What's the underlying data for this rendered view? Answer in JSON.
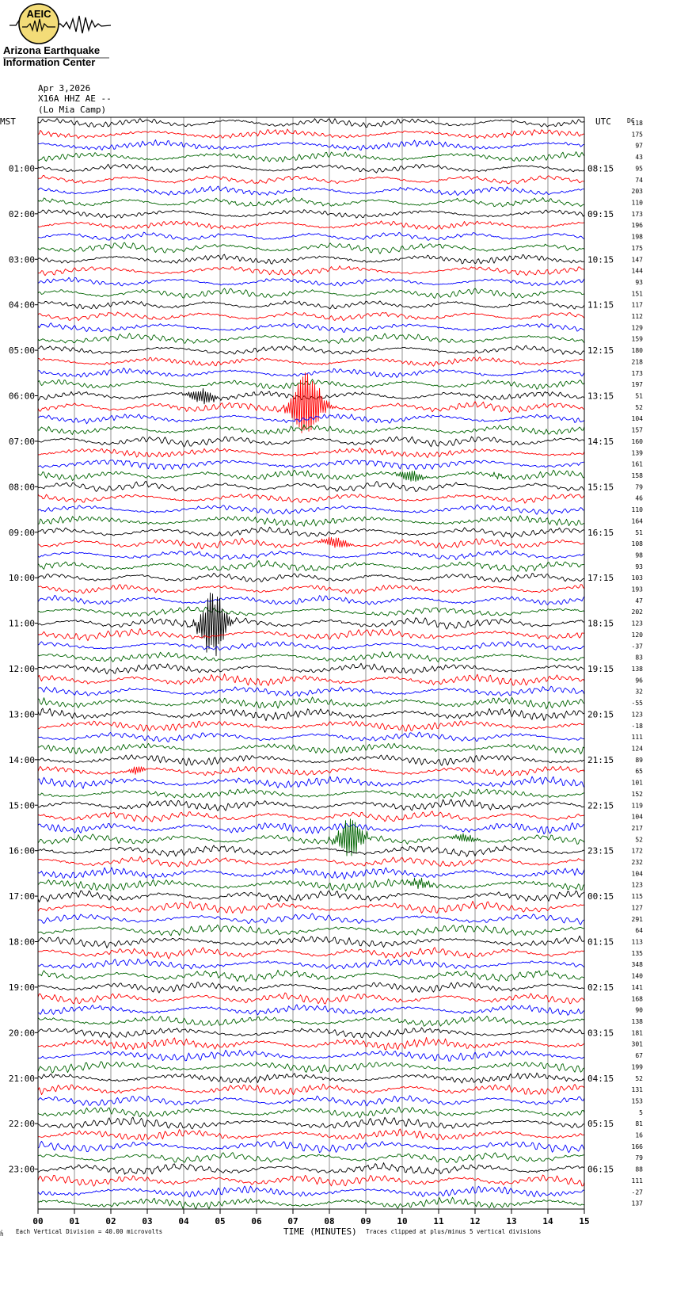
{
  "logo": {
    "abbr": "AEIC",
    "line1": "Arizona Earthquake",
    "line2": "Information Center"
  },
  "header": {
    "date": "Apr 3,2026",
    "station": "X16A HHZ AE --",
    "site": "(Lo Mia Camp)"
  },
  "axis": {
    "left_tz": "MST",
    "right_tz": "UTC",
    "dc_label": "DC",
    "xlabel": "TIME (MINUTES)"
  },
  "footer": {
    "mark": "ĥ",
    "scale": "Each Vertical Division =   40.00 microvolts",
    "clip": "Traces clipped at plus/minus 5 vertical divisions"
  },
  "colors": {
    "trace_cycle": [
      "#000000",
      "#ff0000",
      "#0000ff",
      "#006400"
    ],
    "gridline": "#777777",
    "logo_fill": "#f3dc78"
  },
  "chart_data": {
    "type": "line",
    "title": "",
    "x_range": [
      0,
      15
    ],
    "x_ticks": [
      "00",
      "01",
      "02",
      "03",
      "04",
      "05",
      "06",
      "07",
      "08",
      "09",
      "10",
      "11",
      "12",
      "13",
      "14",
      "15"
    ],
    "traces_per_hour": 4,
    "trace_count": 96,
    "left_hour_labels": [
      "01:00",
      "02:00",
      "03:00",
      "04:00",
      "05:00",
      "06:00",
      "07:00",
      "08:00",
      "09:00",
      "10:00",
      "11:00",
      "12:00",
      "13:00",
      "14:00",
      "15:00",
      "16:00",
      "17:00",
      "18:00",
      "19:00",
      "20:00",
      "21:00",
      "22:00",
      "23:00"
    ],
    "right_hour_labels": [
      "08:15",
      "09:15",
      "10:15",
      "11:15",
      "12:15",
      "13:15",
      "14:15",
      "15:15",
      "16:15",
      "17:15",
      "18:15",
      "19:15",
      "20:15",
      "21:15",
      "22:15",
      "23:15",
      "00:15",
      "01:15",
      "02:15",
      "03:15",
      "04:15",
      "05:15",
      "06:15"
    ],
    "dc_offsets": [
      118,
      175,
      97,
      43,
      95,
      74,
      203,
      110,
      173,
      196,
      198,
      175,
      147,
      144,
      93,
      151,
      117,
      112,
      129,
      159,
      180,
      218,
      173,
      197,
      51,
      52,
      104,
      157,
      160,
      139,
      161,
      158,
      79,
      46,
      110,
      164,
      51,
      108,
      98,
      93,
      103,
      193,
      47,
      202,
      123,
      120,
      -37,
      83,
      138,
      96,
      32,
      -55,
      123,
      -18,
      111,
      124,
      89,
      65,
      101,
      152,
      119,
      104,
      217,
      52,
      172,
      232,
      104,
      123,
      115,
      127,
      291,
      64,
      113,
      135,
      348,
      140,
      141,
      168,
      90,
      138,
      181,
      301,
      67,
      199,
      52,
      131,
      153,
      5,
      81,
      16,
      166,
      79,
      88,
      111,
      -27,
      137
    ],
    "events": [
      {
        "trace": 24,
        "minute": 4.5,
        "amp": 0.55,
        "dur": 0.5
      },
      {
        "trace": 25,
        "minute": 7.4,
        "amp": 3.0,
        "dur": 0.6
      },
      {
        "trace": 31,
        "minute": 10.3,
        "amp": 1.8,
        "dur": 0.5
      },
      {
        "trace": 31,
        "minute": 12.6,
        "amp": 0.4,
        "dur": 0.3
      },
      {
        "trace": 37,
        "minute": 8.2,
        "amp": 0.6,
        "dur": 0.5
      },
      {
        "trace": 44,
        "minute": 4.8,
        "amp": 2.4,
        "dur": 0.5
      },
      {
        "trace": 57,
        "minute": 2.7,
        "amp": 0.4,
        "dur": 0.3
      },
      {
        "trace": 63,
        "minute": 8.6,
        "amp": 2.5,
        "dur": 0.5
      },
      {
        "trace": 63,
        "minute": 11.6,
        "amp": 2.4,
        "dur": 0.5
      },
      {
        "trace": 67,
        "minute": 10.6,
        "amp": 2.2,
        "dur": 0.5
      }
    ]
  }
}
